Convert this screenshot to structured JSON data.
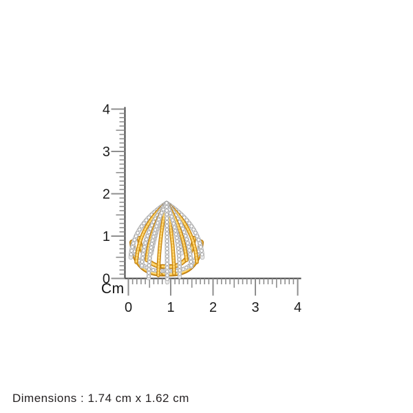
{
  "ruler": {
    "unit_label": "Cm",
    "x_tick_labels": [
      "0",
      "1",
      "2",
      "3",
      "4"
    ],
    "y_tick_labels": [
      "0",
      "1",
      "2",
      "3",
      "4"
    ],
    "minor_divisions_per_cm": 10,
    "colors": {
      "axis_line": "#3f3f3f",
      "tick": "#8e8e8e",
      "tick_label": "#1b1b1b"
    }
  },
  "product": {
    "description": "gold and diamond multi-row fan ear cuff",
    "colors": {
      "gold_shadow": "#B5770E",
      "gold_mid": "#E8A92B",
      "gold_highlight": "#FFDC7E",
      "diamond_channel": "#ABABAB",
      "diamond_fill": "#E8E8E8",
      "diamond_edge": "#9B9B9B",
      "diamond_bead": "#FFFFFF"
    }
  },
  "footer": {
    "dimensions_text": "Dimensions : 1.74 cm x 1.62 cm"
  }
}
